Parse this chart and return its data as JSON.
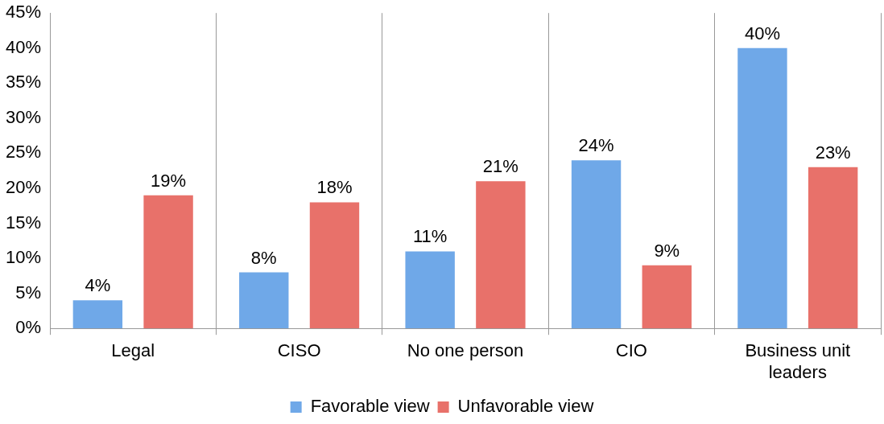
{
  "chart_data": {
    "type": "bar",
    "categories": [
      "Legal",
      "CISO",
      "No one person",
      "CIO",
      "Business unit leaders"
    ],
    "series": [
      {
        "name": "Favorable view",
        "color": "#6fa8e8",
        "values": [
          4,
          8,
          11,
          24,
          40
        ],
        "value_labels": [
          "4%",
          "8%",
          "11%",
          "24%",
          "40%"
        ]
      },
      {
        "name": "Unfavorable view",
        "color": "#e8716a",
        "values": [
          19,
          18,
          21,
          9,
          23
        ],
        "value_labels": [
          "19%",
          "18%",
          "21%",
          "9%",
          "23%"
        ]
      }
    ],
    "ylim": [
      0,
      45
    ],
    "yticks": [
      {
        "value": 0,
        "label": "0%"
      },
      {
        "value": 5,
        "label": "5%"
      },
      {
        "value": 10,
        "label": "10%"
      },
      {
        "value": 15,
        "label": "15%"
      },
      {
        "value": 20,
        "label": "20%"
      },
      {
        "value": 25,
        "label": "25%"
      },
      {
        "value": 30,
        "label": "30%"
      },
      {
        "value": 35,
        "label": "35%"
      },
      {
        "value": 40,
        "label": "40%"
      },
      {
        "value": 45,
        "label": "45%"
      }
    ],
    "grid": "x",
    "legend": "bottom"
  }
}
